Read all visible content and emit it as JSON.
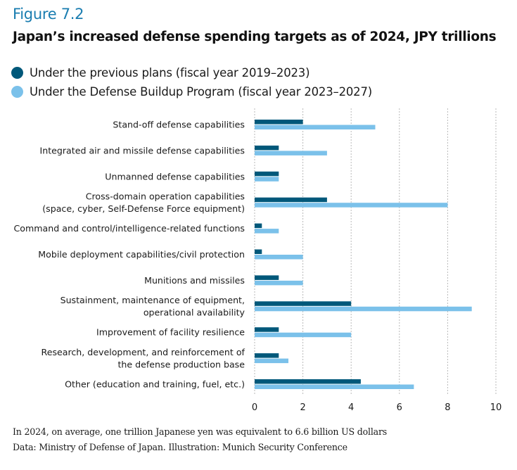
{
  "figure_label": "Figure 7.2",
  "title": "Japan’s increased defense spending targets as of 2024, JPY trillions",
  "notes": [
    "In 2024, on average, one trillion Japanese yen was equivalent to 6.6 billion US dollars",
    "Data: Ministry of Defense of Japan. Illustration: Munich Security Conference"
  ],
  "chart_data": {
    "type": "bar",
    "orientation": "horizontal",
    "title": "Japan’s increased defense spending targets as of 2024, JPY trillions",
    "xlabel": "",
    "ylabel": "",
    "xlim": [
      0,
      10
    ],
    "xticks": [
      0,
      2,
      4,
      6,
      8,
      10
    ],
    "grid": "vertical dotted",
    "legend_position": "top-left",
    "categories": [
      [
        "Stand-off defense capabilities"
      ],
      [
        "Integrated air and missile defense capabilities"
      ],
      [
        "Unmanned defense capabilities"
      ],
      [
        "Cross-domain operation capabilities",
        "(space, cyber, Self-Defense Force equipment)"
      ],
      [
        "Command and control/intelligence-related functions"
      ],
      [
        "Mobile deployment capabilities/civil protection"
      ],
      [
        "Munitions and missiles"
      ],
      [
        "Sustainment, maintenance of equipment,",
        "operational availability"
      ],
      [
        "Improvement of facility resilience"
      ],
      [
        "Research, development, and reinforcement of",
        "the defense production base"
      ],
      [
        "Other (education and training, fuel, etc.)"
      ]
    ],
    "series": [
      {
        "name": "Under the previous plans (fiscal year 2019–2023)",
        "color": "#00587a",
        "values": [
          2,
          1,
          1,
          3,
          0.3,
          0.3,
          1,
          4,
          1,
          1,
          4.4
        ]
      },
      {
        "name": "Under the Defense Buildup Program (fiscal year 2023–2027)",
        "color": "#7bc1ea",
        "values": [
          5,
          3,
          1,
          8,
          1,
          2,
          2,
          9,
          4,
          1.4,
          6.6
        ]
      }
    ]
  }
}
